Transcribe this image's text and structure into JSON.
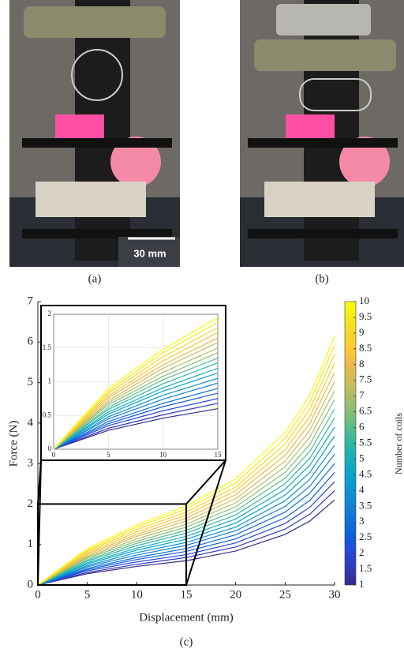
{
  "photos": {
    "a_caption": "(a)",
    "b_caption": "(b)",
    "scale_bar": "30 mm"
  },
  "chart_data": {
    "type": "line",
    "caption": "(c)",
    "x_label": "Displacement (mm)",
    "y_label": "Force (N)",
    "x": [
      0,
      5,
      10,
      15,
      20,
      25,
      27.5,
      30
    ],
    "xlim": [
      0,
      30
    ],
    "ylim": [
      0,
      7
    ],
    "xticks": [
      0,
      5,
      10,
      15,
      20,
      25,
      30
    ],
    "yticks": [
      0,
      1,
      2,
      3,
      4,
      5,
      6,
      7
    ],
    "colorbar_label": "Number of coils",
    "series": [
      {
        "name": "1",
        "color": "#352a87",
        "values": [
          0,
          0.28,
          0.46,
          0.6,
          0.84,
          1.25,
          1.58,
          2.1
        ]
      },
      {
        "name": "1.5",
        "color": "#3139b8",
        "values": [
          0,
          0.31,
          0.51,
          0.68,
          0.94,
          1.38,
          1.75,
          2.33
        ]
      },
      {
        "name": "2",
        "color": "#2747d8",
        "values": [
          0,
          0.35,
          0.57,
          0.75,
          1.04,
          1.52,
          1.92,
          2.55
        ]
      },
      {
        "name": "2.5",
        "color": "#0f5cdd",
        "values": [
          0,
          0.38,
          0.63,
          0.83,
          1.14,
          1.66,
          2.09,
          2.78
        ]
      },
      {
        "name": "3",
        "color": "#0f6fd8",
        "values": [
          0,
          0.41,
          0.68,
          0.9,
          1.24,
          1.8,
          2.27,
          3.0
        ]
      },
      {
        "name": "3.5",
        "color": "#1481d6",
        "values": [
          0,
          0.45,
          0.74,
          0.98,
          1.34,
          1.94,
          2.44,
          3.23
        ]
      },
      {
        "name": "4",
        "color": "#0d93d2",
        "values": [
          0,
          0.48,
          0.8,
          1.05,
          1.43,
          2.08,
          2.61,
          3.45
        ]
      },
      {
        "name": "4.5",
        "color": "#06a4ca",
        "values": [
          0,
          0.52,
          0.86,
          1.13,
          1.53,
          2.22,
          2.78,
          3.68
        ]
      },
      {
        "name": "5",
        "color": "#15aebc",
        "values": [
          0,
          0.55,
          0.91,
          1.2,
          1.63,
          2.36,
          2.96,
          3.9
        ]
      },
      {
        "name": "5.5",
        "color": "#2eb7a4",
        "values": [
          0,
          0.59,
          0.97,
          1.28,
          1.73,
          2.5,
          3.13,
          4.13
        ]
      },
      {
        "name": "6",
        "color": "#59bc8c",
        "values": [
          0,
          0.62,
          1.03,
          1.35,
          1.83,
          2.64,
          3.3,
          4.35
        ]
      },
      {
        "name": "6.5",
        "color": "#87bf77",
        "values": [
          0,
          0.66,
          1.08,
          1.43,
          1.93,
          2.78,
          3.47,
          4.58
        ]
      },
      {
        "name": "7",
        "color": "#adbe67",
        "values": [
          0,
          0.69,
          1.14,
          1.5,
          2.03,
          2.92,
          3.65,
          4.8
        ]
      },
      {
        "name": "7.5",
        "color": "#d1bb59",
        "values": [
          0,
          0.72,
          1.2,
          1.58,
          2.13,
          3.06,
          3.82,
          5.03
        ]
      },
      {
        "name": "8",
        "color": "#ecb94a",
        "values": [
          0,
          0.76,
          1.25,
          1.65,
          2.23,
          3.2,
          3.99,
          5.25
        ]
      },
      {
        "name": "8.5",
        "color": "#fec832",
        "values": [
          0,
          0.79,
          1.31,
          1.73,
          2.33,
          3.34,
          4.16,
          5.48
        ]
      },
      {
        "name": "9",
        "color": "#f5d62a",
        "values": [
          0,
          0.83,
          1.37,
          1.8,
          2.42,
          3.48,
          4.34,
          5.7
        ]
      },
      {
        "name": "9.5",
        "color": "#f6e81c",
        "values": [
          0,
          0.86,
          1.43,
          1.88,
          2.52,
          3.62,
          4.51,
          5.93
        ]
      },
      {
        "name": "10",
        "color": "#f9fb0e",
        "values": [
          0,
          0.9,
          1.48,
          1.95,
          2.62,
          3.76,
          4.68,
          6.15
        ]
      }
    ],
    "inset": {
      "xlim": [
        0,
        15
      ],
      "ylim": [
        0,
        2
      ],
      "xticks": [
        0,
        5,
        10,
        15
      ],
      "yticks": [
        0,
        0.5,
        1,
        1.5,
        2
      ],
      "grid": true
    }
  }
}
